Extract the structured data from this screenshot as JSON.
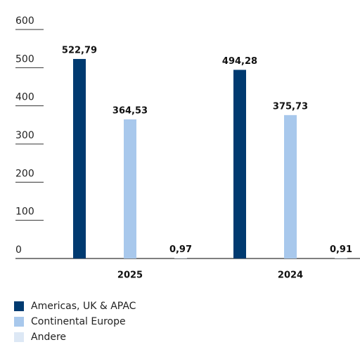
{
  "chart_data": {
    "type": "bar",
    "categories": [
      "2025",
      "2024"
    ],
    "series": [
      {
        "name": "Americas, UK & APAC",
        "color": "#003a70",
        "values": [
          522.79,
          494.28
        ],
        "value_labels": [
          "522,79",
          "494,28"
        ]
      },
      {
        "name": "Continental Europe",
        "color": "#a8c8ec",
        "values": [
          364.53,
          375.73
        ],
        "value_labels": [
          "364,53",
          "375,73"
        ]
      },
      {
        "name": "Andere",
        "color": "#dde8f5",
        "values": [
          0.97,
          0.91
        ],
        "value_labels": [
          "0,97",
          "0,91"
        ]
      }
    ],
    "ylim": [
      0,
      600
    ],
    "yticks": [
      0,
      100,
      200,
      300,
      400,
      500,
      600
    ],
    "legend": "bottom-left"
  }
}
